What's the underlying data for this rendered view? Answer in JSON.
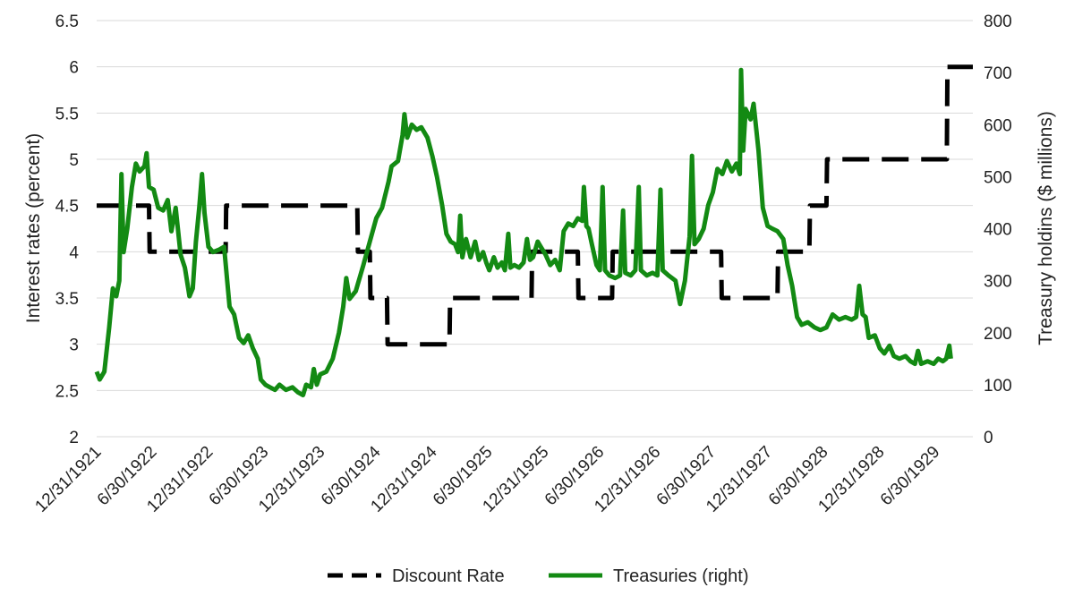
{
  "chart_data": {
    "type": "line",
    "title": "",
    "ylabel": "Interest rates (percent)",
    "y2label": "Treasury holdins ($ millions)",
    "ylim": [
      2,
      6.5
    ],
    "y2lim": [
      0,
      800
    ],
    "y_ticks": [
      "2",
      "2.5",
      "3",
      "3.5",
      "4",
      "4.5",
      "5",
      "5.5",
      "6",
      "6.5"
    ],
    "y2_ticks": [
      "0",
      "100",
      "200",
      "300",
      "400",
      "500",
      "600",
      "700",
      "800"
    ],
    "x_range": [
      "1921-12-31",
      "1929-10-31"
    ],
    "x_ticks": [
      {
        "date": "1921-12-31",
        "label": "12/31/1921"
      },
      {
        "date": "1922-06-30",
        "label": "6/30/1922"
      },
      {
        "date": "1922-12-31",
        "label": "12/31/1922"
      },
      {
        "date": "1923-06-30",
        "label": "6/30/1923"
      },
      {
        "date": "1923-12-31",
        "label": "12/31/1923"
      },
      {
        "date": "1924-06-30",
        "label": "6/30/1924"
      },
      {
        "date": "1924-12-31",
        "label": "12/31/1924"
      },
      {
        "date": "1925-06-30",
        "label": "6/30/1925"
      },
      {
        "date": "1925-12-31",
        "label": "12/31/1925"
      },
      {
        "date": "1926-06-30",
        "label": "6/30/1926"
      },
      {
        "date": "1926-12-31",
        "label": "12/31/1926"
      },
      {
        "date": "1927-06-30",
        "label": "6/30/1927"
      },
      {
        "date": "1927-12-31",
        "label": "12/31/1927"
      },
      {
        "date": "1928-06-30",
        "label": "6/30/1928"
      },
      {
        "date": "1928-12-31",
        "label": "12/31/1928"
      },
      {
        "date": "1929-06-30",
        "label": "6/30/1929"
      }
    ],
    "grid": "horizontal",
    "legend": "bottom",
    "series": [
      {
        "name": "Discount Rate",
        "axis": "left",
        "color": "#000000",
        "style": "dashed-step",
        "points": [
          [
            "1921-12-31",
            4.5
          ],
          [
            "1922-06-20",
            4.5
          ],
          [
            "1922-06-22",
            4.0
          ],
          [
            "1922-12-31",
            4.0
          ],
          [
            "1923-02-25",
            4.0
          ],
          [
            "1923-02-27",
            4.5
          ],
          [
            "1924-04-30",
            4.5
          ],
          [
            "1924-05-02",
            4.0
          ],
          [
            "1924-06-10",
            4.0
          ],
          [
            "1924-06-12",
            3.5
          ],
          [
            "1924-08-05",
            3.5
          ],
          [
            "1924-08-07",
            3.0
          ],
          [
            "1925-02-25",
            3.0
          ],
          [
            "1925-02-27",
            3.5
          ],
          [
            "1925-11-20",
            3.5
          ],
          [
            "1925-11-22",
            4.0
          ],
          [
            "1926-04-20",
            4.0
          ],
          [
            "1926-04-22",
            3.5
          ],
          [
            "1926-08-10",
            3.5
          ],
          [
            "1926-08-12",
            4.0
          ],
          [
            "1927-08-01",
            4.0
          ],
          [
            "1927-08-03",
            3.5
          ],
          [
            "1928-02-01",
            3.5
          ],
          [
            "1928-02-03",
            4.0
          ],
          [
            "1928-05-15",
            4.0
          ],
          [
            "1928-05-17",
            4.5
          ],
          [
            "1928-07-10",
            4.5
          ],
          [
            "1928-07-12",
            5.0
          ],
          [
            "1929-08-07",
            5.0
          ],
          [
            "1929-08-09",
            6.0
          ],
          [
            "1929-10-31",
            6.0
          ]
        ]
      },
      {
        "name": "Treasuries (right)",
        "axis": "right",
        "color": "#138a13",
        "style": "solid",
        "points": [
          [
            "1921-12-31",
            125
          ],
          [
            "1922-01-10",
            110
          ],
          [
            "1922-01-25",
            125
          ],
          [
            "1922-02-10",
            210
          ],
          [
            "1922-02-22",
            285
          ],
          [
            "1922-03-05",
            270
          ],
          [
            "1922-03-15",
            300
          ],
          [
            "1922-03-22",
            505
          ],
          [
            "1922-03-29",
            355
          ],
          [
            "1922-04-10",
            400
          ],
          [
            "1922-04-25",
            480
          ],
          [
            "1922-05-08",
            525
          ],
          [
            "1922-05-20",
            510
          ],
          [
            "1922-06-05",
            520
          ],
          [
            "1922-06-12",
            545
          ],
          [
            "1922-06-20",
            480
          ],
          [
            "1922-07-05",
            475
          ],
          [
            "1922-07-20",
            440
          ],
          [
            "1922-08-05",
            435
          ],
          [
            "1922-08-20",
            455
          ],
          [
            "1922-09-01",
            395
          ],
          [
            "1922-09-15",
            440
          ],
          [
            "1922-10-01",
            350
          ],
          [
            "1922-10-15",
            325
          ],
          [
            "1922-10-30",
            270
          ],
          [
            "1922-11-10",
            285
          ],
          [
            "1922-11-20",
            375
          ],
          [
            "1922-12-01",
            440
          ],
          [
            "1922-12-10",
            505
          ],
          [
            "1922-12-18",
            430
          ],
          [
            "1922-12-31",
            365
          ],
          [
            "1923-01-15",
            355
          ],
          [
            "1923-02-05",
            360
          ],
          [
            "1923-02-20",
            365
          ],
          [
            "1923-03-10",
            250
          ],
          [
            "1923-03-25",
            235
          ],
          [
            "1923-04-10",
            190
          ],
          [
            "1923-04-25",
            180
          ],
          [
            "1923-05-10",
            195
          ],
          [
            "1923-05-25",
            170
          ],
          [
            "1923-06-10",
            150
          ],
          [
            "1923-06-20",
            110
          ],
          [
            "1923-07-05",
            100
          ],
          [
            "1923-07-20",
            95
          ],
          [
            "1923-08-05",
            90
          ],
          [
            "1923-08-20",
            100
          ],
          [
            "1923-09-10",
            90
          ],
          [
            "1923-10-01",
            95
          ],
          [
            "1923-10-20",
            85
          ],
          [
            "1923-11-05",
            80
          ],
          [
            "1923-11-15",
            100
          ],
          [
            "1923-12-01",
            95
          ],
          [
            "1923-12-10",
            130
          ],
          [
            "1923-12-20",
            100
          ],
          [
            "1923-12-31",
            120
          ],
          [
            "1924-01-20",
            125
          ],
          [
            "1924-02-10",
            150
          ],
          [
            "1924-03-01",
            200
          ],
          [
            "1924-03-15",
            250
          ],
          [
            "1924-03-25",
            305
          ],
          [
            "1924-04-05",
            265
          ],
          [
            "1924-04-25",
            280
          ],
          [
            "1924-05-20",
            330
          ],
          [
            "1924-06-10",
            375
          ],
          [
            "1924-07-01",
            420
          ],
          [
            "1924-07-20",
            440
          ],
          [
            "1924-08-10",
            490
          ],
          [
            "1924-08-20",
            520
          ],
          [
            "1924-09-10",
            530
          ],
          [
            "1924-09-25",
            580
          ],
          [
            "1924-10-01",
            620
          ],
          [
            "1924-10-10",
            575
          ],
          [
            "1924-10-25",
            600
          ],
          [
            "1924-11-10",
            590
          ],
          [
            "1924-11-25",
            595
          ],
          [
            "1924-12-15",
            575
          ],
          [
            "1924-12-31",
            540
          ],
          [
            "1925-01-15",
            500
          ],
          [
            "1925-02-01",
            445
          ],
          [
            "1925-02-15",
            390
          ],
          [
            "1925-03-01",
            375
          ],
          [
            "1925-03-15",
            370
          ],
          [
            "1925-03-25",
            355
          ],
          [
            "1925-04-01",
            425
          ],
          [
            "1925-04-08",
            345
          ],
          [
            "1925-04-20",
            380
          ],
          [
            "1925-05-05",
            345
          ],
          [
            "1925-05-20",
            375
          ],
          [
            "1925-06-01",
            340
          ],
          [
            "1925-06-15",
            355
          ],
          [
            "1925-06-25",
            335
          ],
          [
            "1925-07-05",
            320
          ],
          [
            "1925-07-20",
            345
          ],
          [
            "1925-08-01",
            325
          ],
          [
            "1925-08-15",
            335
          ],
          [
            "1925-08-25",
            320
          ],
          [
            "1925-09-05",
            390
          ],
          [
            "1925-09-12",
            325
          ],
          [
            "1925-09-25",
            330
          ],
          [
            "1925-10-10",
            325
          ],
          [
            "1925-10-25",
            335
          ],
          [
            "1925-11-05",
            380
          ],
          [
            "1925-11-15",
            340
          ],
          [
            "1925-11-25",
            345
          ],
          [
            "1925-12-10",
            375
          ],
          [
            "1925-12-20",
            365
          ],
          [
            "1926-01-05",
            350
          ],
          [
            "1926-01-20",
            330
          ],
          [
            "1926-02-05",
            340
          ],
          [
            "1926-02-20",
            320
          ],
          [
            "1926-03-05",
            395
          ],
          [
            "1926-03-20",
            410
          ],
          [
            "1926-04-05",
            405
          ],
          [
            "1926-04-20",
            420
          ],
          [
            "1926-05-05",
            415
          ],
          [
            "1926-05-10",
            480
          ],
          [
            "1926-05-18",
            405
          ],
          [
            "1926-05-25",
            400
          ],
          [
            "1926-06-05",
            370
          ],
          [
            "1926-06-20",
            330
          ],
          [
            "1926-07-01",
            320
          ],
          [
            "1926-07-10",
            480
          ],
          [
            "1926-07-18",
            320
          ],
          [
            "1926-08-01",
            310
          ],
          [
            "1926-08-20",
            305
          ],
          [
            "1926-09-05",
            310
          ],
          [
            "1926-09-15",
            435
          ],
          [
            "1926-09-22",
            315
          ],
          [
            "1926-10-10",
            310
          ],
          [
            "1926-10-25",
            320
          ],
          [
            "1926-11-05",
            480
          ],
          [
            "1926-11-12",
            320
          ],
          [
            "1926-12-01",
            310
          ],
          [
            "1926-12-20",
            315
          ],
          [
            "1927-01-05",
            310
          ],
          [
            "1927-01-15",
            475
          ],
          [
            "1927-01-22",
            320
          ],
          [
            "1927-02-10",
            310
          ],
          [
            "1927-03-05",
            300
          ],
          [
            "1927-03-20",
            255
          ],
          [
            "1927-04-05",
            300
          ],
          [
            "1927-04-20",
            385
          ],
          [
            "1927-04-28",
            540
          ],
          [
            "1927-05-06",
            370
          ],
          [
            "1927-05-20",
            380
          ],
          [
            "1927-06-05",
            400
          ],
          [
            "1927-06-20",
            445
          ],
          [
            "1927-07-05",
            470
          ],
          [
            "1927-07-20",
            515
          ],
          [
            "1927-08-05",
            505
          ],
          [
            "1927-08-20",
            530
          ],
          [
            "1927-09-05",
            510
          ],
          [
            "1927-09-20",
            525
          ],
          [
            "1927-10-01",
            505
          ],
          [
            "1927-10-05",
            705
          ],
          [
            "1927-10-12",
            550
          ],
          [
            "1927-10-20",
            630
          ],
          [
            "1927-11-05",
            610
          ],
          [
            "1927-11-15",
            640
          ],
          [
            "1927-12-01",
            550
          ],
          [
            "1927-12-15",
            440
          ],
          [
            "1927-12-31",
            405
          ],
          [
            "1928-01-15",
            400
          ],
          [
            "1928-02-01",
            395
          ],
          [
            "1928-02-20",
            380
          ],
          [
            "1928-03-05",
            330
          ],
          [
            "1928-03-20",
            290
          ],
          [
            "1928-04-05",
            230
          ],
          [
            "1928-04-20",
            215
          ],
          [
            "1928-05-10",
            220
          ],
          [
            "1928-06-01",
            210
          ],
          [
            "1928-06-20",
            205
          ],
          [
            "1928-07-10",
            210
          ],
          [
            "1928-07-30",
            235
          ],
          [
            "1928-08-20",
            225
          ],
          [
            "1928-09-10",
            230
          ],
          [
            "1928-09-30",
            225
          ],
          [
            "1928-10-15",
            230
          ],
          [
            "1928-10-25",
            290
          ],
          [
            "1928-11-05",
            235
          ],
          [
            "1928-11-15",
            230
          ],
          [
            "1928-11-25",
            190
          ],
          [
            "1928-12-15",
            195
          ],
          [
            "1928-12-31",
            170
          ],
          [
            "1929-01-15",
            160
          ],
          [
            "1929-02-01",
            175
          ],
          [
            "1929-02-15",
            155
          ],
          [
            "1929-03-05",
            150
          ],
          [
            "1929-03-25",
            155
          ],
          [
            "1929-04-10",
            145
          ],
          [
            "1929-04-25",
            140
          ],
          [
            "1929-05-05",
            165
          ],
          [
            "1929-05-15",
            140
          ],
          [
            "1929-06-05",
            145
          ],
          [
            "1929-06-25",
            140
          ],
          [
            "1929-07-10",
            150
          ],
          [
            "1929-07-25",
            145
          ],
          [
            "1929-08-05",
            150
          ],
          [
            "1929-08-15",
            175
          ],
          [
            "1929-08-20",
            150
          ]
        ]
      }
    ]
  }
}
